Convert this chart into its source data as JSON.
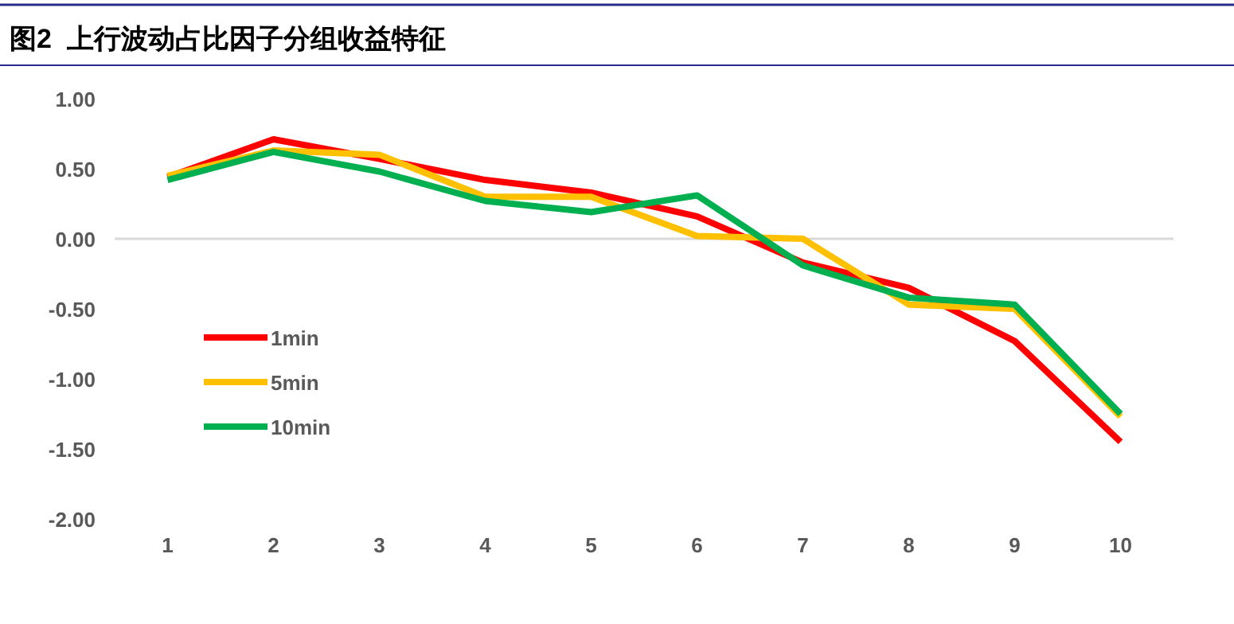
{
  "chart_data": {
    "type": "line",
    "title": "图2  上行波动占比因子分组收益特征",
    "categories": [
      "1",
      "2",
      "3",
      "4",
      "5",
      "6",
      "7",
      "8",
      "9",
      "10"
    ],
    "series": [
      {
        "name": "1min",
        "color": "#ff0000",
        "values": [
          0.44,
          0.71,
          0.57,
          0.42,
          0.33,
          0.16,
          -0.17,
          -0.35,
          -0.73,
          -1.45
        ]
      },
      {
        "name": "5min",
        "color": "#ffc000",
        "values": [
          0.45,
          0.63,
          0.6,
          0.3,
          0.3,
          0.02,
          0.0,
          -0.47,
          -0.5,
          -1.27
        ]
      },
      {
        "name": "10min",
        "color": "#00b050",
        "values": [
          0.42,
          0.62,
          0.48,
          0.27,
          0.19,
          0.31,
          -0.19,
          -0.42,
          -0.47,
          -1.25
        ]
      }
    ],
    "ylim": [
      -2,
      1
    ],
    "yticks": [
      {
        "value": 1,
        "label": "1.00"
      },
      {
        "value": 0.5,
        "label": "0.50"
      },
      {
        "value": 0,
        "label": "0.00"
      },
      {
        "value": -0.5,
        "label": "-0.50"
      },
      {
        "value": -1,
        "label": "-1.00"
      },
      {
        "value": -1.5,
        "label": "-1.50"
      },
      {
        "value": -2,
        "label": "-2.00"
      }
    ],
    "ref_lines": [
      {
        "axis": "y",
        "value": 0,
        "color": "#d9d9d9"
      }
    ],
    "grid": false,
    "legend": "left",
    "marker": "none",
    "line_style": "solid"
  }
}
